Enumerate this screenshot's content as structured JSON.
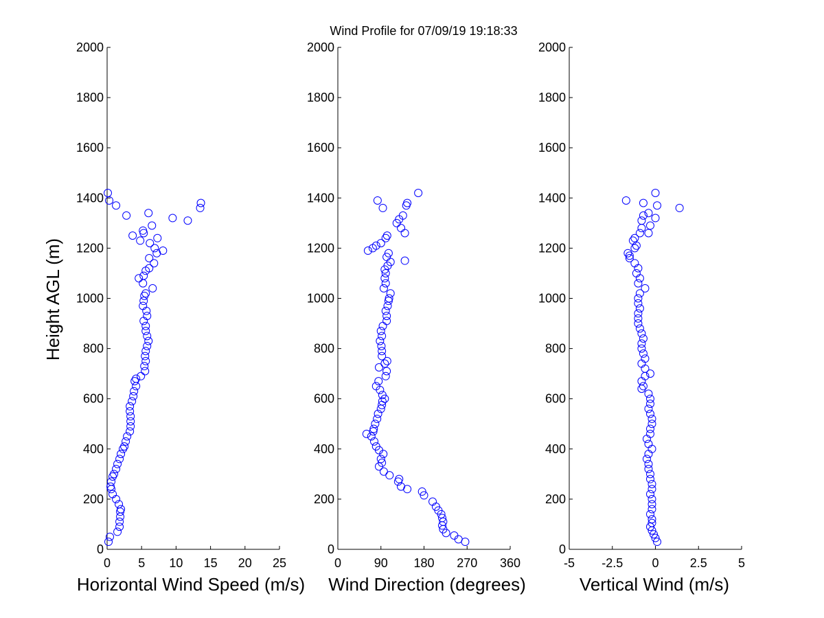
{
  "title": "Wind Profile for  07/09/19 19:18:33",
  "ylabel": "Height AGL (m)",
  "colors": {
    "marker": "#0000ff",
    "axes": "#000000",
    "background": "#ffffff"
  },
  "chart_data": [
    {
      "type": "scatter",
      "xlabel": "Horizontal Wind Speed (m/s)",
      "ylabel": "Height AGL (m)",
      "xlim": [
        0,
        25
      ],
      "ylim": [
        0,
        2000
      ],
      "xticks": [
        "0",
        "5",
        "10",
        "15",
        "20",
        "25"
      ],
      "yticks": [
        "0",
        "200",
        "400",
        "600",
        "800",
        "1000",
        "1200",
        "1400",
        "1600",
        "1800",
        "2000"
      ],
      "marker": "circle",
      "grid": false,
      "points": [
        [
          0.2,
          30
        ],
        [
          0.4,
          50
        ],
        [
          1.5,
          70
        ],
        [
          1.8,
          90
        ],
        [
          1.8,
          110
        ],
        [
          1.9,
          130
        ],
        [
          1.9,
          150
        ],
        [
          2.0,
          160
        ],
        [
          1.7,
          180
        ],
        [
          1.3,
          200
        ],
        [
          0.8,
          220
        ],
        [
          0.6,
          240
        ],
        [
          0.5,
          250
        ],
        [
          0.6,
          270
        ],
        [
          0.8,
          290
        ],
        [
          1.0,
          300
        ],
        [
          1.3,
          320
        ],
        [
          1.5,
          340
        ],
        [
          1.8,
          360
        ],
        [
          2.0,
          380
        ],
        [
          2.3,
          400
        ],
        [
          2.5,
          410
        ],
        [
          2.7,
          430
        ],
        [
          2.9,
          450
        ],
        [
          3.3,
          470
        ],
        [
          3.4,
          490
        ],
        [
          3.4,
          510
        ],
        [
          3.4,
          530
        ],
        [
          3.3,
          550
        ],
        [
          3.3,
          570
        ],
        [
          3.6,
          590
        ],
        [
          3.8,
          610
        ],
        [
          3.9,
          630
        ],
        [
          4.2,
          650
        ],
        [
          4.0,
          670
        ],
        [
          4.2,
          680
        ],
        [
          4.9,
          690
        ],
        [
          5.5,
          710
        ],
        [
          5.4,
          730
        ],
        [
          5.6,
          750
        ],
        [
          5.5,
          770
        ],
        [
          5.6,
          790
        ],
        [
          5.8,
          810
        ],
        [
          6.0,
          830
        ],
        [
          5.8,
          850
        ],
        [
          5.6,
          870
        ],
        [
          5.6,
          890
        ],
        [
          5.3,
          910
        ],
        [
          5.8,
          930
        ],
        [
          5.7,
          950
        ],
        [
          5.2,
          970
        ],
        [
          5.3,
          990
        ],
        [
          5.4,
          1010
        ],
        [
          5.6,
          1020
        ],
        [
          6.6,
          1040
        ],
        [
          5.2,
          1060
        ],
        [
          4.6,
          1080
        ],
        [
          5.3,
          1090
        ],
        [
          5.6,
          1110
        ],
        [
          6.1,
          1120
        ],
        [
          6.8,
          1140
        ],
        [
          6.1,
          1160
        ],
        [
          7.2,
          1180
        ],
        [
          8.1,
          1190
        ],
        [
          6.9,
          1200
        ],
        [
          6.2,
          1220
        ],
        [
          7.3,
          1240
        ],
        [
          3.7,
          1250
        ],
        [
          5.3,
          1260
        ],
        [
          5.2,
          1270
        ],
        [
          4.8,
          1230
        ],
        [
          6.5,
          1290
        ],
        [
          11.7,
          1310
        ],
        [
          9.5,
          1320
        ],
        [
          2.8,
          1330
        ],
        [
          6.0,
          1340
        ],
        [
          13.5,
          1360
        ],
        [
          1.3,
          1370
        ],
        [
          13.6,
          1380
        ],
        [
          0.3,
          1390
        ],
        [
          0.1,
          1420
        ]
      ]
    },
    {
      "type": "scatter",
      "xlabel": "Wind Direction (degrees)",
      "ylabel": "",
      "xlim": [
        0,
        360
      ],
      "ylim": [
        0,
        2000
      ],
      "xticks": [
        "0",
        "90",
        "180",
        "270",
        "360"
      ],
      "yticks": [
        "0",
        "200",
        "400",
        "600",
        "800",
        "1000",
        "1200",
        "1400",
        "1600",
        "1800",
        "2000"
      ],
      "marker": "circle",
      "grid": false,
      "points": [
        [
          266,
          30
        ],
        [
          252,
          40
        ],
        [
          243,
          55
        ],
        [
          226,
          65
        ],
        [
          220,
          80
        ],
        [
          218,
          95
        ],
        [
          220,
          110
        ],
        [
          218,
          125
        ],
        [
          216,
          140
        ],
        [
          210,
          155
        ],
        [
          205,
          170
        ],
        [
          198,
          190
        ],
        [
          180,
          215
        ],
        [
          176,
          230
        ],
        [
          145,
          240
        ],
        [
          132,
          250
        ],
        [
          126,
          270
        ],
        [
          128,
          280
        ],
        [
          108,
          295
        ],
        [
          96,
          310
        ],
        [
          86,
          330
        ],
        [
          92,
          345
        ],
        [
          90,
          360
        ],
        [
          95,
          380
        ],
        [
          86,
          395
        ],
        [
          80,
          410
        ],
        [
          76,
          430
        ],
        [
          70,
          450
        ],
        [
          60,
          460
        ],
        [
          74,
          470
        ],
        [
          75,
          480
        ],
        [
          78,
          500
        ],
        [
          82,
          520
        ],
        [
          84,
          540
        ],
        [
          90,
          560
        ],
        [
          92,
          575
        ],
        [
          93,
          590
        ],
        [
          98,
          600
        ],
        [
          93,
          615
        ],
        [
          88,
          635
        ],
        [
          80,
          650
        ],
        [
          85,
          670
        ],
        [
          100,
          690
        ],
        [
          102,
          710
        ],
        [
          86,
          725
        ],
        [
          98,
          740
        ],
        [
          103,
          750
        ],
        [
          92,
          770
        ],
        [
          92,
          790
        ],
        [
          91,
          810
        ],
        [
          88,
          830
        ],
        [
          92,
          850
        ],
        [
          90,
          870
        ],
        [
          94,
          890
        ],
        [
          102,
          910
        ],
        [
          102,
          930
        ],
        [
          100,
          950
        ],
        [
          104,
          970
        ],
        [
          106,
          990
        ],
        [
          107,
          1000
        ],
        [
          110,
          1020
        ],
        [
          96,
          1040
        ],
        [
          100,
          1060
        ],
        [
          98,
          1080
        ],
        [
          100,
          1100
        ],
        [
          98,
          1115
        ],
        [
          104,
          1130
        ],
        [
          110,
          1145
        ],
        [
          140,
          1150
        ],
        [
          102,
          1165
        ],
        [
          106,
          1180
        ],
        [
          63,
          1190
        ],
        [
          73,
          1200
        ],
        [
          80,
          1210
        ],
        [
          90,
          1220
        ],
        [
          100,
          1240
        ],
        [
          103,
          1250
        ],
        [
          140,
          1260
        ],
        [
          132,
          1280
        ],
        [
          123,
          1300
        ],
        [
          128,
          1315
        ],
        [
          136,
          1330
        ],
        [
          83,
          1390
        ],
        [
          143,
          1370
        ],
        [
          94,
          1360
        ],
        [
          145,
          1380
        ],
        [
          168,
          1420
        ]
      ]
    },
    {
      "type": "scatter",
      "xlabel": "Vertical Wind (m/s)",
      "ylabel": "",
      "xlim": [
        -5,
        5
      ],
      "ylim": [
        0,
        2000
      ],
      "xticks": [
        "-5",
        "-2.5",
        "0",
        "2.5",
        "5"
      ],
      "yticks": [
        "0",
        "200",
        "400",
        "600",
        "800",
        "1000",
        "1200",
        "1400",
        "1600",
        "1800",
        "2000"
      ],
      "marker": "circle",
      "grid": false,
      "points": [
        [
          0.1,
          30
        ],
        [
          0,
          45
        ],
        [
          -0.1,
          60
        ],
        [
          -0.2,
          75
        ],
        [
          -0.3,
          90
        ],
        [
          -0.2,
          105
        ],
        [
          -0.2,
          120
        ],
        [
          -0.3,
          140
        ],
        [
          -0.2,
          160
        ],
        [
          -0.2,
          180
        ],
        [
          -0.2,
          200
        ],
        [
          -0.3,
          220
        ],
        [
          -0.2,
          240
        ],
        [
          -0.2,
          260
        ],
        [
          -0.3,
          280
        ],
        [
          -0.3,
          300
        ],
        [
          -0.4,
          320
        ],
        [
          -0.4,
          340
        ],
        [
          -0.5,
          360
        ],
        [
          -0.4,
          380
        ],
        [
          -0.2,
          400
        ],
        [
          -0.4,
          420
        ],
        [
          -0.5,
          440
        ],
        [
          -0.3,
          460
        ],
        [
          -0.3,
          480
        ],
        [
          -0.2,
          500
        ],
        [
          -0.2,
          520
        ],
        [
          -0.3,
          540
        ],
        [
          -0.4,
          560
        ],
        [
          -0.3,
          580
        ],
        [
          -0.3,
          600
        ],
        [
          -0.4,
          620
        ],
        [
          -0.8,
          640
        ],
        [
          -0.7,
          650
        ],
        [
          -0.8,
          670
        ],
        [
          -0.6,
          690
        ],
        [
          -0.3,
          700
        ],
        [
          -0.6,
          720
        ],
        [
          -0.8,
          740
        ],
        [
          -0.6,
          760
        ],
        [
          -0.7,
          780
        ],
        [
          -0.8,
          800
        ],
        [
          -0.8,
          820
        ],
        [
          -0.7,
          840
        ],
        [
          -0.8,
          860
        ],
        [
          -0.9,
          880
        ],
        [
          -1.0,
          900
        ],
        [
          -1.0,
          920
        ],
        [
          -1.0,
          940
        ],
        [
          -0.9,
          960
        ],
        [
          -1.0,
          980
        ],
        [
          -1.0,
          1000
        ],
        [
          -0.9,
          1020
        ],
        [
          -0.6,
          1040
        ],
        [
          -1.0,
          1060
        ],
        [
          -0.9,
          1080
        ],
        [
          -1.1,
          1100
        ],
        [
          -1.0,
          1120
        ],
        [
          -1.2,
          1140
        ],
        [
          -1.5,
          1160
        ],
        [
          -1.5,
          1170
        ],
        [
          -1.6,
          1180
        ],
        [
          -1.2,
          1200
        ],
        [
          -1.1,
          1210
        ],
        [
          -1.3,
          1230
        ],
        [
          -1.2,
          1240
        ],
        [
          -0.9,
          1260
        ],
        [
          -0.4,
          1260
        ],
        [
          -0.8,
          1280
        ],
        [
          -0.3,
          1290
        ],
        [
          -0.8,
          1310
        ],
        [
          0,
          1320
        ],
        [
          -0.7,
          1330
        ],
        [
          -0.4,
          1340
        ],
        [
          1.4,
          1360
        ],
        [
          0.1,
          1370
        ],
        [
          -0.7,
          1380
        ],
        [
          -1.7,
          1390
        ],
        [
          0,
          1420
        ]
      ]
    }
  ]
}
